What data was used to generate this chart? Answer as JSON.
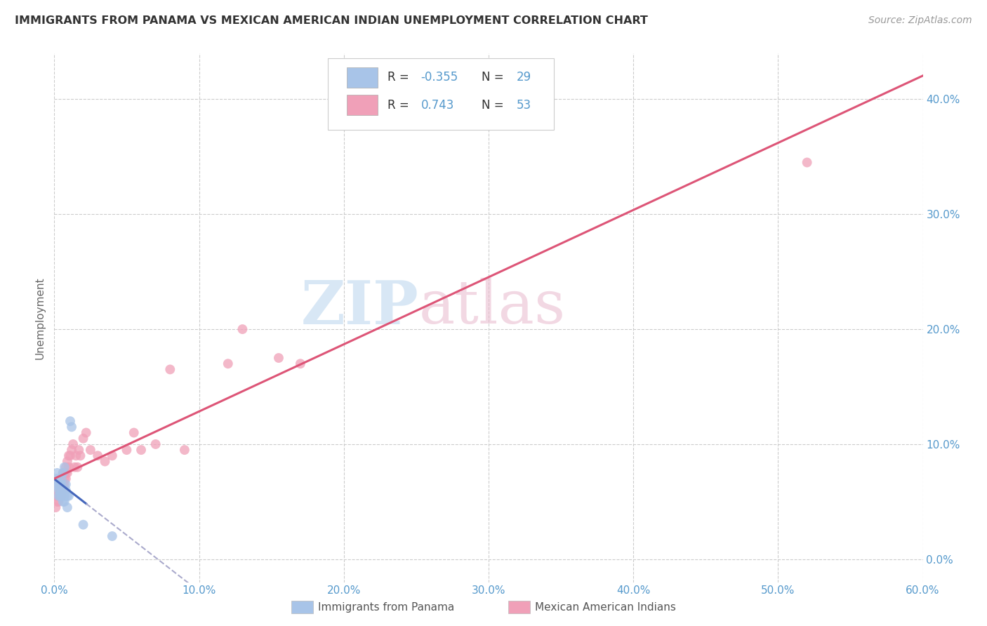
{
  "title": "IMMIGRANTS FROM PANAMA VS MEXICAN AMERICAN INDIAN UNEMPLOYMENT CORRELATION CHART",
  "source": "Source: ZipAtlas.com",
  "ylabel": "Unemployment",
  "xlim": [
    0.0,
    0.6
  ],
  "ylim": [
    -0.02,
    0.44
  ],
  "color_panama": "#a8c4e8",
  "color_mexican": "#f0a0b8",
  "color_panama_line": "#4466bb",
  "color_mexican_line": "#dd5577",
  "color_axis_ticks": "#5599cc",
  "color_title": "#333333",
  "color_ylabel": "#666666",
  "color_source": "#999999",
  "watermark_color": "#c8dff5",
  "grid_color": "#cccccc",
  "panama_x": [
    0.001,
    0.002,
    0.002,
    0.003,
    0.003,
    0.003,
    0.004,
    0.004,
    0.004,
    0.005,
    0.005,
    0.005,
    0.005,
    0.006,
    0.006,
    0.006,
    0.006,
    0.007,
    0.007,
    0.007,
    0.008,
    0.008,
    0.009,
    0.009,
    0.01,
    0.011,
    0.012,
    0.02,
    0.04
  ],
  "panama_y": [
    0.065,
    0.07,
    0.075,
    0.055,
    0.06,
    0.065,
    0.055,
    0.06,
    0.065,
    0.055,
    0.06,
    0.065,
    0.07,
    0.05,
    0.055,
    0.06,
    0.075,
    0.05,
    0.055,
    0.08,
    0.06,
    0.065,
    0.045,
    0.055,
    0.055,
    0.12,
    0.115,
    0.03,
    0.02
  ],
  "mexican_x": [
    0.001,
    0.001,
    0.002,
    0.002,
    0.002,
    0.003,
    0.003,
    0.003,
    0.004,
    0.004,
    0.004,
    0.005,
    0.005,
    0.005,
    0.005,
    0.006,
    0.006,
    0.006,
    0.007,
    0.007,
    0.007,
    0.008,
    0.008,
    0.008,
    0.009,
    0.009,
    0.01,
    0.01,
    0.011,
    0.012,
    0.013,
    0.014,
    0.015,
    0.016,
    0.017,
    0.018,
    0.02,
    0.022,
    0.025,
    0.03,
    0.035,
    0.04,
    0.05,
    0.055,
    0.06,
    0.07,
    0.08,
    0.09,
    0.12,
    0.13,
    0.155,
    0.17,
    0.52
  ],
  "mexican_y": [
    0.045,
    0.055,
    0.05,
    0.055,
    0.06,
    0.05,
    0.055,
    0.065,
    0.055,
    0.06,
    0.065,
    0.055,
    0.06,
    0.065,
    0.07,
    0.06,
    0.065,
    0.075,
    0.065,
    0.07,
    0.075,
    0.07,
    0.075,
    0.08,
    0.075,
    0.085,
    0.08,
    0.09,
    0.09,
    0.095,
    0.1,
    0.08,
    0.09,
    0.08,
    0.095,
    0.09,
    0.105,
    0.11,
    0.095,
    0.09,
    0.085,
    0.09,
    0.095,
    0.11,
    0.095,
    0.1,
    0.165,
    0.095,
    0.17,
    0.2,
    0.175,
    0.17,
    0.345
  ],
  "yticks": [
    0.0,
    0.1,
    0.2,
    0.3,
    0.4
  ],
  "yticklabels": [
    "0.0%",
    "10.0%",
    "20.0%",
    "30.0%",
    "40.0%"
  ],
  "xticks": [
    0.0,
    0.1,
    0.2,
    0.3,
    0.4,
    0.5,
    0.6
  ],
  "xticklabels": [
    "0.0%",
    "10.0%",
    "20.0%",
    "30.0%",
    "40.0%",
    "50.0%",
    "60.0%"
  ]
}
